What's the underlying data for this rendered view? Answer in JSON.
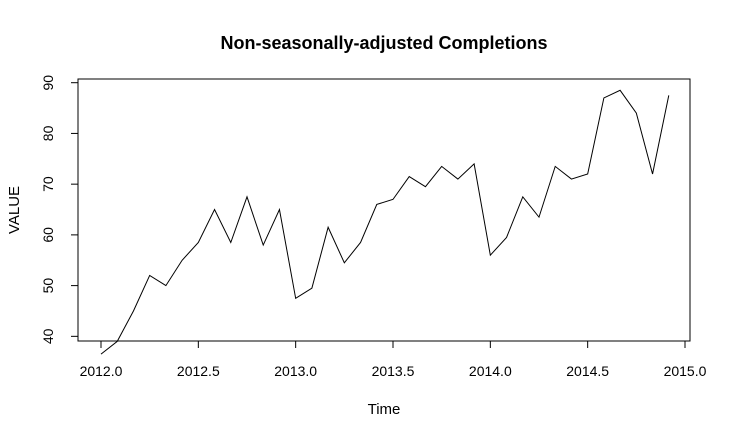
{
  "chart_data": {
    "type": "line",
    "title": "Non-seasonally-adjusted Completions",
    "xlabel": "Time",
    "ylabel": "VALUE",
    "xlim": [
      2012.0,
      2015.0
    ],
    "ylim": [
      35,
      90
    ],
    "x_ticks": [
      "2012.0",
      "2012.5",
      "2013.0",
      "2013.5",
      "2014.0",
      "2014.5",
      "2015.0"
    ],
    "y_ticks": [
      "40",
      "50",
      "60",
      "70",
      "80",
      "90"
    ],
    "grid": false,
    "legend": "none",
    "line_color": "#000000",
    "series": [
      {
        "x": [
          2012.0,
          2012.0833,
          2012.1667,
          2012.25,
          2012.3333,
          2012.4167,
          2012.5,
          2012.5833,
          2012.6667,
          2012.75,
          2012.8333,
          2012.9167,
          2013.0,
          2013.0833,
          2013.1667,
          2013.25,
          2013.3333,
          2013.4167,
          2013.5,
          2013.5833,
          2013.6667,
          2013.75,
          2013.8333,
          2013.9167,
          2014.0,
          2014.0833,
          2014.1667,
          2014.25,
          2014.3333,
          2014.4167,
          2014.5,
          2014.5833,
          2014.6667,
          2014.75,
          2014.8333,
          2014.9167
        ],
        "values": [
          36.5,
          39.0,
          45.0,
          52.0,
          50.0,
          55.0,
          58.5,
          65.0,
          58.5,
          67.5,
          58.0,
          65.0,
          47.5,
          49.5,
          61.5,
          54.5,
          58.5,
          66.0,
          67.0,
          71.5,
          69.5,
          73.5,
          71.0,
          74.0,
          56.0,
          59.5,
          67.5,
          63.5,
          73.5,
          71.0,
          72.0,
          87.0,
          88.5,
          84.0,
          72.0,
          87.5
        ]
      }
    ]
  }
}
